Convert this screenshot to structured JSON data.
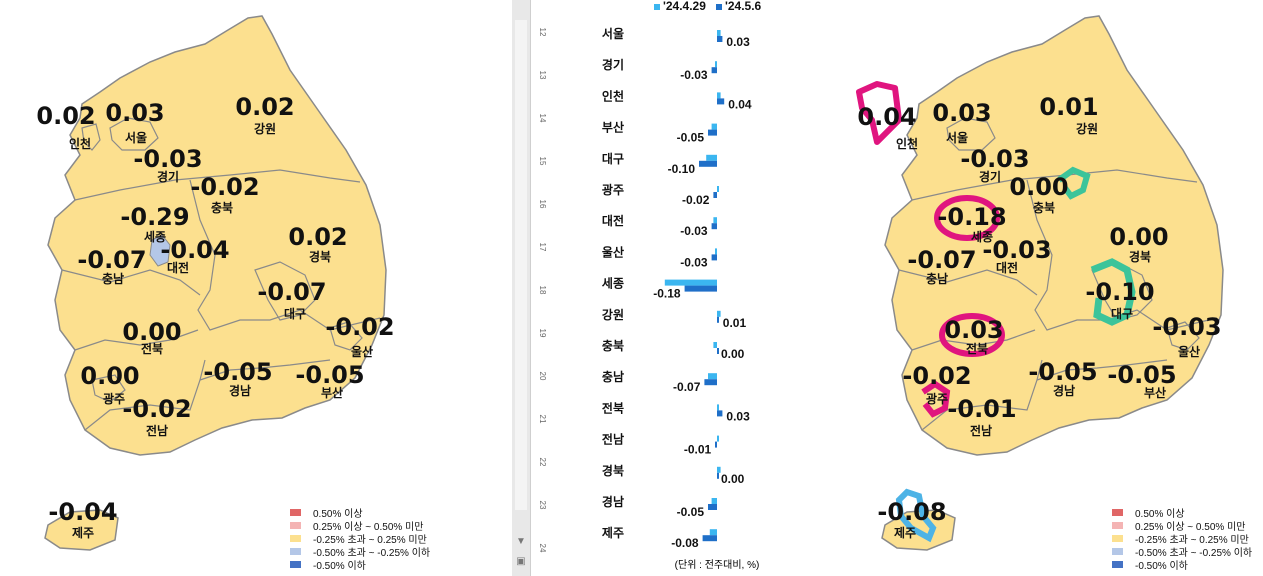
{
  "left_map": {
    "regions": [
      {
        "id": "seoul",
        "name": "서울",
        "value": "0.03"
      },
      {
        "id": "incheon",
        "name": "인천",
        "value": "0.02"
      },
      {
        "id": "gyeonggi",
        "name": "경기",
        "value": "-0.03"
      },
      {
        "id": "gangwon",
        "name": "강원",
        "value": "0.02"
      },
      {
        "id": "chungbuk",
        "name": "충북",
        "value": "-0.02"
      },
      {
        "id": "sejong",
        "name": "세종",
        "value": "-0.29"
      },
      {
        "id": "daejeon",
        "name": "대전",
        "value": "-0.04"
      },
      {
        "id": "chungnam",
        "name": "충남",
        "value": "-0.07"
      },
      {
        "id": "gyeongbuk",
        "name": "경북",
        "value": "0.02"
      },
      {
        "id": "daegu",
        "name": "대구",
        "value": "-0.07"
      },
      {
        "id": "ulsan",
        "name": "울산",
        "value": "-0.02"
      },
      {
        "id": "jeonbuk",
        "name": "전북",
        "value": "0.00"
      },
      {
        "id": "gwangju",
        "name": "광주",
        "value": "0.00"
      },
      {
        "id": "jeonnam",
        "name": "전남",
        "value": "-0.02"
      },
      {
        "id": "gyeongnam",
        "name": "경남",
        "value": "-0.05"
      },
      {
        "id": "busan",
        "name": "부산",
        "value": "-0.05"
      },
      {
        "id": "jeju",
        "name": "제주",
        "value": "-0.04"
      }
    ]
  },
  "right_map": {
    "regions": [
      {
        "id": "seoul",
        "name": "서울",
        "value": "0.03"
      },
      {
        "id": "incheon",
        "name": "인천",
        "value": "0.04"
      },
      {
        "id": "gyeonggi",
        "name": "경기",
        "value": "-0.03"
      },
      {
        "id": "gangwon",
        "name": "강원",
        "value": "0.01"
      },
      {
        "id": "chungbuk",
        "name": "충북",
        "value": "0.00"
      },
      {
        "id": "sejong",
        "name": "세종",
        "value": "-0.18"
      },
      {
        "id": "daejeon",
        "name": "대전",
        "value": "-0.03"
      },
      {
        "id": "chungnam",
        "name": "충남",
        "value": "-0.07"
      },
      {
        "id": "gyeongbuk",
        "name": "경북",
        "value": "0.00"
      },
      {
        "id": "daegu",
        "name": "대구",
        "value": "-0.10"
      },
      {
        "id": "ulsan",
        "name": "울산",
        "value": "-0.03"
      },
      {
        "id": "jeonbuk",
        "name": "전북",
        "value": "0.03"
      },
      {
        "id": "gwangju",
        "name": "광주",
        "value": "-0.02"
      },
      {
        "id": "jeonnam",
        "name": "전남",
        "value": "-0.01"
      },
      {
        "id": "gyeongnam",
        "name": "경남",
        "value": "-0.05"
      },
      {
        "id": "busan",
        "name": "부산",
        "value": "-0.05"
      },
      {
        "id": "jeju",
        "name": "제주",
        "value": "-0.08"
      }
    ]
  },
  "legend": {
    "items": [
      {
        "label": "0.50% 이상",
        "color": "#e06666"
      },
      {
        "label": "0.25% 이상 ~ 0.50% 미만",
        "color": "#f4b4b4"
      },
      {
        "label": "-0.25% 초과 ~ 0.25% 미만",
        "color": "#fce08f"
      },
      {
        "label": "-0.50% 초과 ~ -0.25% 이하",
        "color": "#b4c7e7"
      },
      {
        "label": "-0.50% 이하",
        "color": "#4472c4"
      }
    ]
  },
  "colors": {
    "map_fill": "#fce08f",
    "sejong_fill_left": "#b4c7e7",
    "border": "#8a8a8a",
    "highlight_pink": "#e0157f",
    "highlight_green": "#3cc49a",
    "highlight_blue": "#4db3e6"
  },
  "chart_data": {
    "type": "bar",
    "orientation": "horizontal",
    "categories": [
      "서울",
      "경기",
      "인천",
      "부산",
      "대구",
      "광주",
      "대전",
      "울산",
      "세종",
      "강원",
      "충북",
      "충남",
      "전북",
      "전남",
      "경북",
      "경남",
      "제주"
    ],
    "series": [
      {
        "name": "'24.4.29",
        "color": "#3bb6f0",
        "values": [
          0.02,
          -0.01,
          0.02,
          -0.03,
          -0.06,
          0.0,
          -0.02,
          -0.01,
          -0.29,
          0.02,
          -0.02,
          -0.05,
          0.0,
          0.0,
          0.02,
          -0.03,
          -0.04
        ]
      },
      {
        "name": "'24.5.6",
        "color": "#1f6fc8",
        "values": [
          0.03,
          -0.03,
          0.04,
          -0.05,
          -0.1,
          -0.02,
          -0.03,
          -0.03,
          -0.18,
          0.01,
          0.0,
          -0.07,
          0.03,
          -0.01,
          0.0,
          -0.05,
          -0.08
        ]
      }
    ],
    "value_labels": [
      "0.03",
      "-0.03",
      "0.04",
      "-0.05",
      "-0.10",
      "-0.02",
      "-0.03",
      "-0.03",
      "-0.18",
      "0.01",
      "0.00",
      "-0.07",
      "0.03",
      "-0.01",
      "0.00",
      "-0.05",
      "-0.08"
    ],
    "row_numbers": [
      "12",
      "13",
      "14",
      "15",
      "16",
      "17",
      "18",
      "19",
      "20",
      "21",
      "22",
      "23",
      "24"
    ],
    "unit_label": "(단위 : 전주대비, %)",
    "xlim": [
      -0.3,
      0.1
    ]
  },
  "scrollbar": {
    "up": "▲",
    "down": "▼",
    "corner": "▣"
  }
}
